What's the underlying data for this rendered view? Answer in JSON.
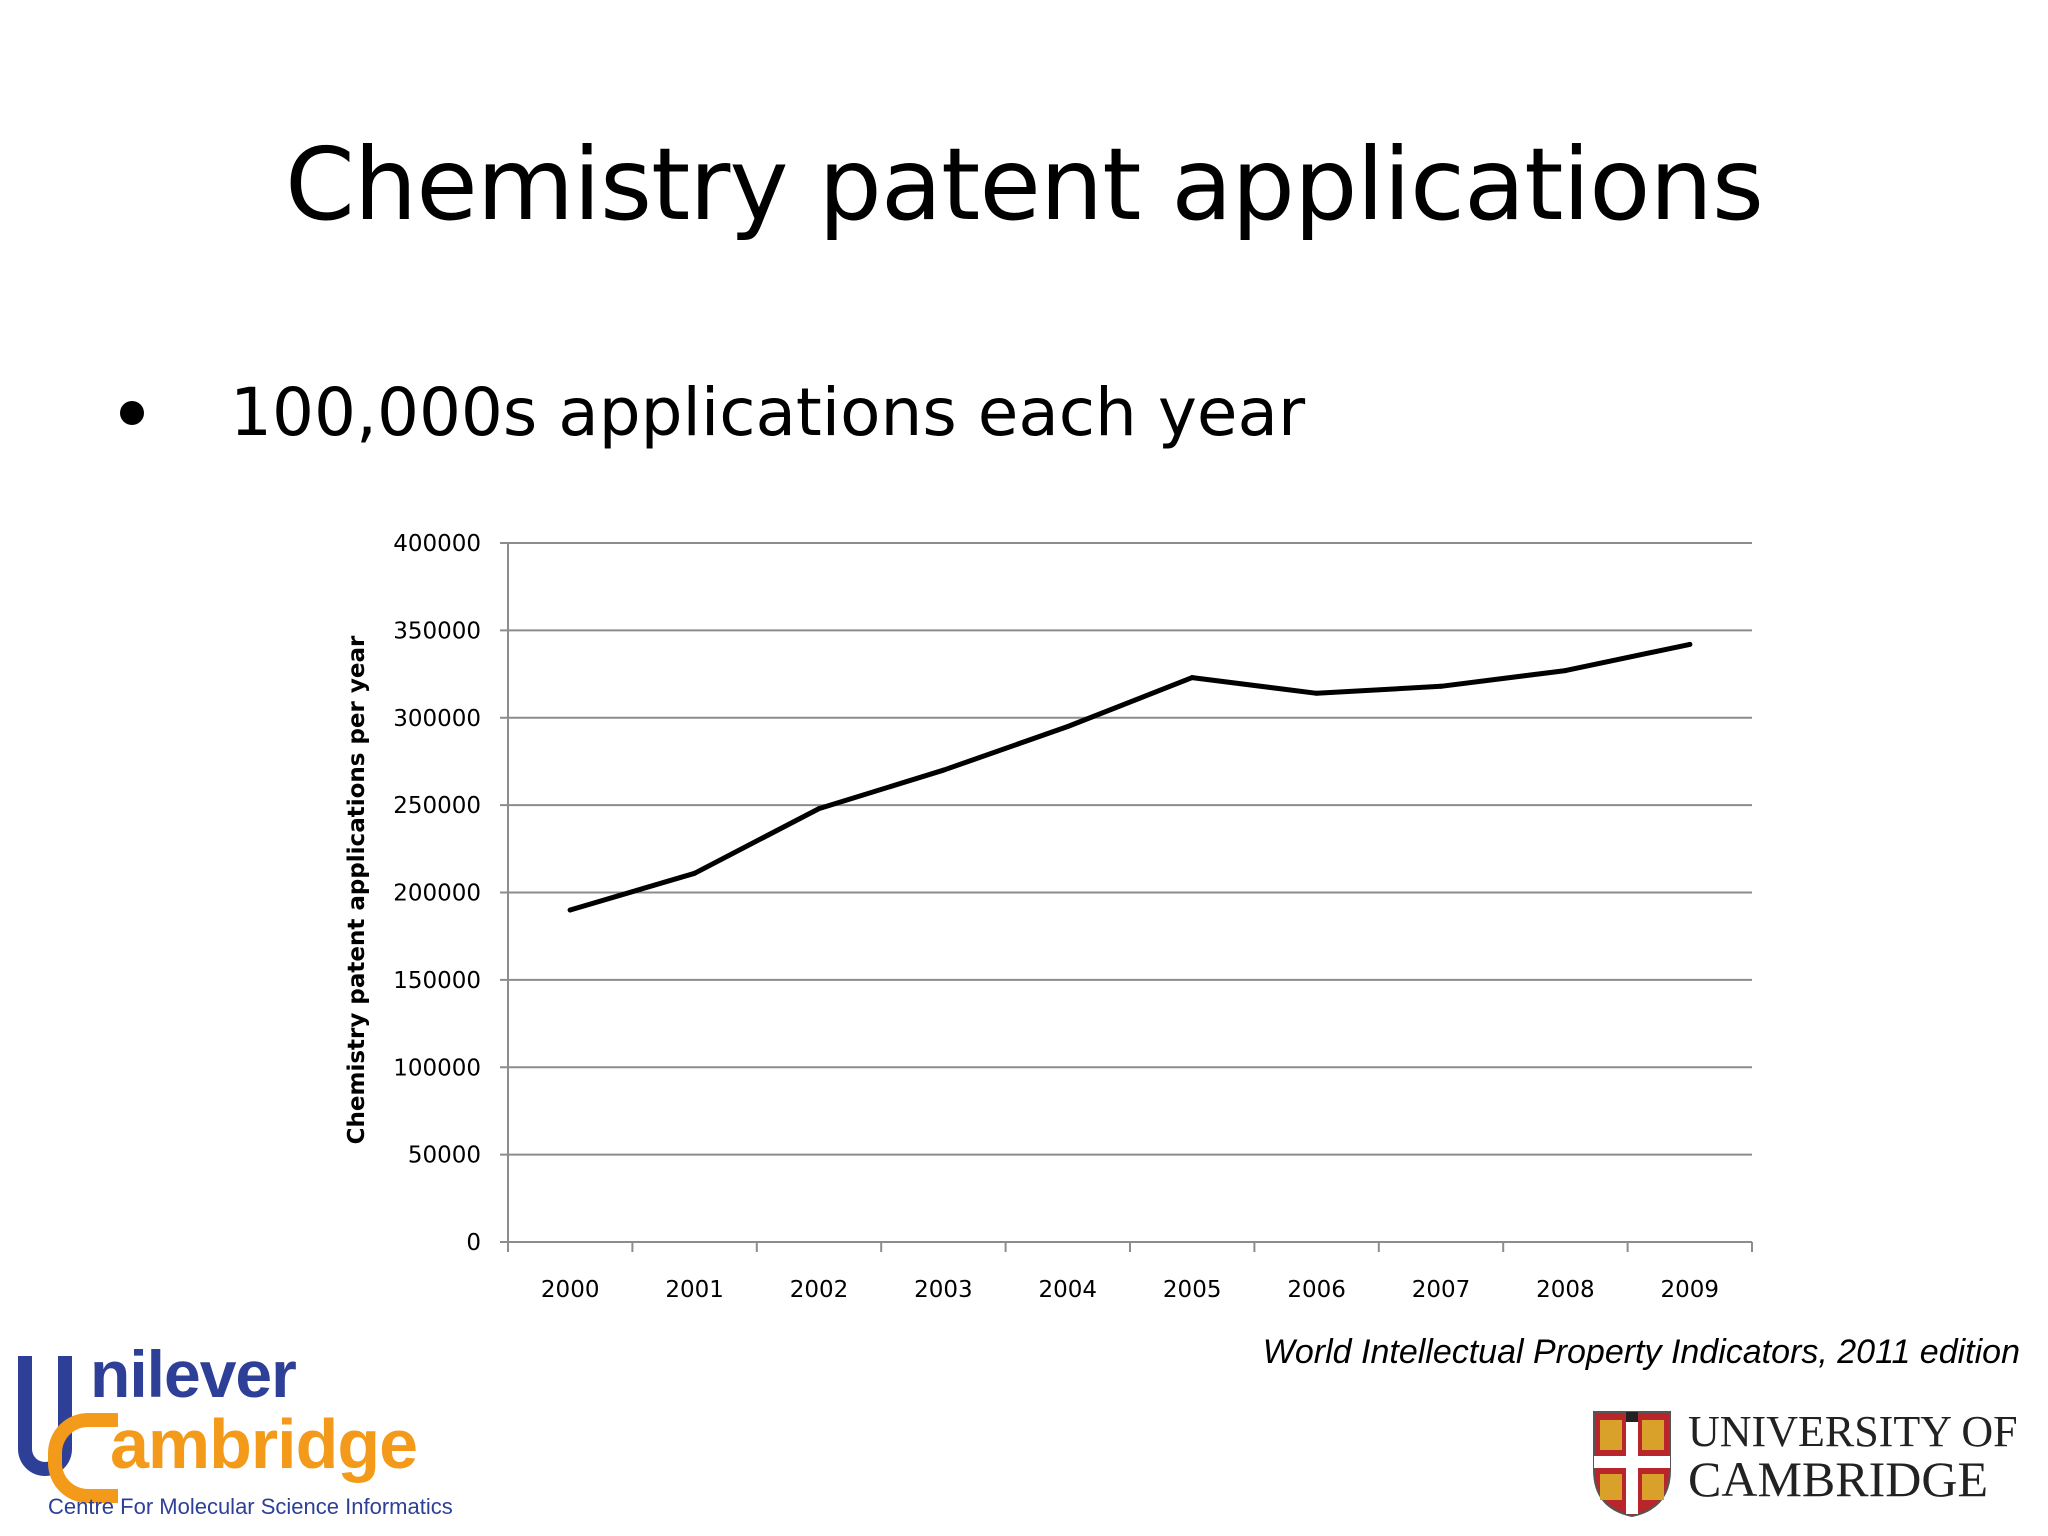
{
  "slide": {
    "title": "Chemistry patent applications",
    "bullet": "100,000s applications each year",
    "source": "World Intellectual Property Indicators, 2011 edition"
  },
  "logos": {
    "ucmsi_word1": "nilever",
    "ucmsi_word2": "ambridge",
    "ucmsi_tagline": "Centre For Molecular Science Informatics",
    "cambridge_line1": "UNIVERSITY OF",
    "cambridge_line2": "CAMBRIDGE",
    "colors": {
      "ucmsi_blue": "#2e3f97",
      "ucmsi_orange": "#f49a1a",
      "cambridge_red": "#b8262b"
    }
  },
  "chart_data": {
    "type": "line",
    "title": "",
    "xlabel": "",
    "ylabel": "Chemistry patent applications per year",
    "categories": [
      "2000",
      "2001",
      "2002",
      "2003",
      "2004",
      "2005",
      "2006",
      "2007",
      "2008",
      "2009"
    ],
    "series": [
      {
        "values": [
          190000,
          211000,
          248000,
          270000,
          295000,
          323000,
          314000,
          318000,
          327000,
          342000
        ]
      }
    ],
    "ylim": [
      0,
      400000
    ],
    "yticks": [
      "0",
      "50000",
      "100000",
      "150000",
      "200000",
      "250000",
      "300000",
      "350000",
      "400000"
    ],
    "grid": true,
    "legend": "none",
    "line_color": "#000000",
    "grid_color": "#8c8c8c"
  }
}
